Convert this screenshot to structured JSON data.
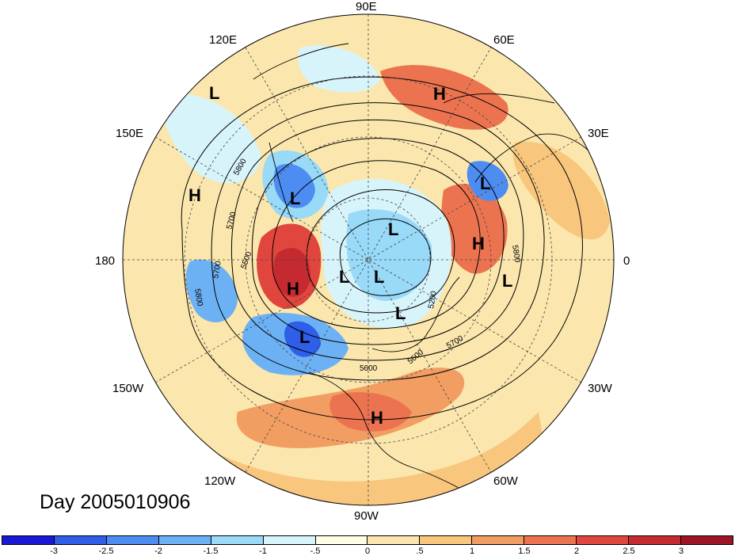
{
  "title": "Day 2005010906",
  "longitude_labels": {
    "lon_90E": "90E",
    "lon_60E": "60E",
    "lon_30E": "30E",
    "lon_0": "0",
    "lon_30W": "30W",
    "lon_60W": "60W",
    "lon_90W": "90W",
    "lon_120W": "120W",
    "lon_150W": "150W",
    "lon_180": "180",
    "lon_150E": "150E",
    "lon_120E": "120E"
  },
  "pressure_centers": [
    {
      "type": "L",
      "name": "low-120E"
    },
    {
      "type": "H",
      "name": "high-60E"
    },
    {
      "type": "L",
      "name": "low-40E"
    },
    {
      "type": "H",
      "name": "high-160E"
    },
    {
      "type": "L",
      "name": "low-kamchatka"
    },
    {
      "type": "L",
      "name": "low-arctic-1"
    },
    {
      "type": "H",
      "name": "high-scandinavia"
    },
    {
      "type": "L",
      "name": "low-atlantic"
    },
    {
      "type": "L",
      "name": "low-arctic-2"
    },
    {
      "type": "L",
      "name": "low-arctic-3"
    },
    {
      "type": "H",
      "name": "high-alaska"
    },
    {
      "type": "L",
      "name": "low-greenland"
    },
    {
      "type": "L",
      "name": "low-gulf-alaska"
    },
    {
      "type": "H",
      "name": "high-gulf-mexico"
    }
  ],
  "contour_labels": [
    "5800",
    "5700",
    "5500",
    "5700",
    "5800",
    "5200",
    "5600",
    "5600",
    "5700",
    "5800"
  ],
  "colorbar": {
    "colors": [
      "#1a17d6",
      "#2f5ee8",
      "#4d8df2",
      "#6db1f5",
      "#99daf8",
      "#d8f4fb",
      "#fffde6",
      "#fbe7ad",
      "#f8c67d",
      "#f29e63",
      "#ec7350",
      "#e0463d",
      "#c42a30",
      "#9e1426"
    ],
    "tick_labels": [
      "-3",
      "-2.5",
      "-2",
      "-1.5",
      "-1",
      "-.5",
      "0",
      ".5",
      "1",
      "1.5",
      "2",
      "2.5",
      "3"
    ]
  }
}
